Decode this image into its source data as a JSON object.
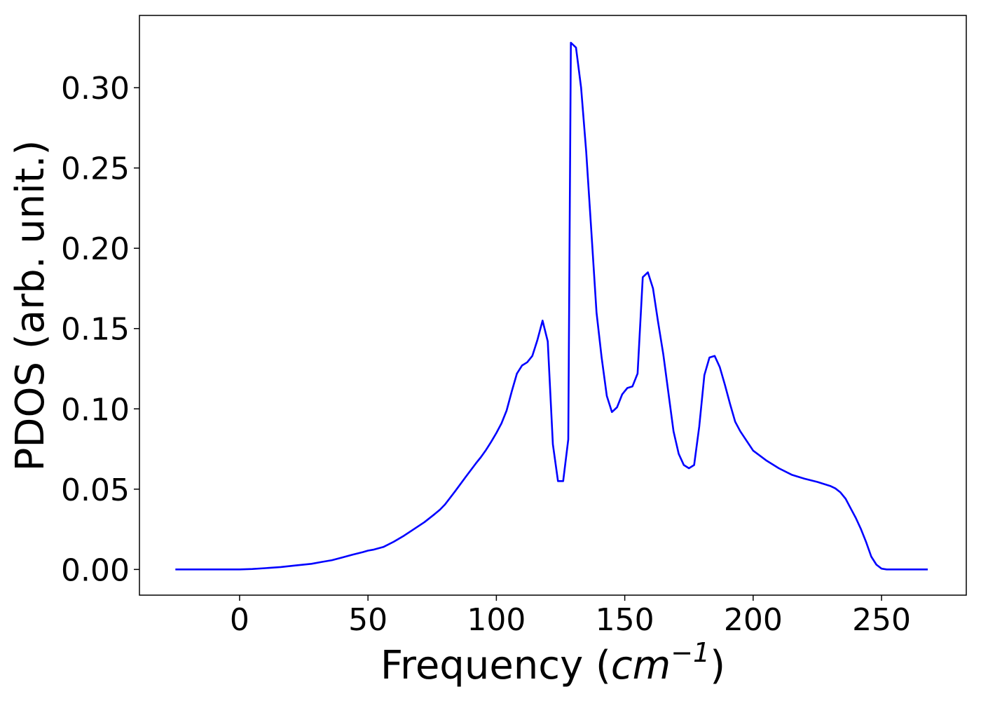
{
  "chart_data": {
    "type": "line",
    "title": "",
    "xlabel": "Frequency",
    "xlabel_unit": "cm",
    "xlabel_unit_exponent": "−1",
    "ylabel": "PDOS (arb. unit.)",
    "xlim": [
      -39,
      283
    ],
    "ylim": [
      -0.016,
      0.345
    ],
    "xticks": [
      0,
      50,
      100,
      150,
      200,
      250
    ],
    "xtick_labels": [
      "0",
      "50",
      "100",
      "150",
      "200",
      "250"
    ],
    "yticks": [
      0.0,
      0.05,
      0.1,
      0.15,
      0.2,
      0.25,
      0.3
    ],
    "ytick_labels": [
      "0.00",
      "0.05",
      "0.10",
      "0.15",
      "0.20",
      "0.25",
      "0.30"
    ],
    "grid": false,
    "legend": "none",
    "series": [
      {
        "color": "#0000ff",
        "x": [
          -25,
          -15,
          -5,
          0,
          5,
          10,
          16,
          22,
          28,
          32,
          36,
          40,
          44,
          48,
          50,
          52,
          56,
          60,
          64,
          68,
          72,
          76,
          78,
          80,
          84,
          88,
          92,
          94,
          96,
          98,
          100,
          102,
          104,
          106,
          108,
          110,
          112,
          114,
          116,
          118,
          120,
          122,
          124,
          126,
          128,
          129,
          131,
          133,
          135,
          137,
          139,
          141,
          143,
          145,
          147,
          149,
          151,
          153,
          155,
          157,
          159,
          161,
          163,
          165,
          167,
          169,
          171,
          173,
          175,
          177,
          179,
          181,
          183,
          185,
          187,
          189,
          191,
          193,
          195,
          200,
          205,
          210,
          215,
          220,
          225,
          230,
          232,
          234,
          236,
          238,
          240,
          242,
          244,
          246,
          248,
          250,
          252,
          256,
          262,
          268
        ],
        "y": [
          0.0,
          0.0,
          0.0,
          0.0,
          0.0003,
          0.0008,
          0.0015,
          0.0025,
          0.0035,
          0.0047,
          0.0058,
          0.0075,
          0.0092,
          0.0108,
          0.0117,
          0.0123,
          0.014,
          0.0172,
          0.021,
          0.0252,
          0.0295,
          0.0345,
          0.0372,
          0.0405,
          0.0488,
          0.0575,
          0.066,
          0.07,
          0.0745,
          0.0795,
          0.085,
          0.091,
          0.099,
          0.111,
          0.122,
          0.127,
          0.129,
          0.133,
          0.143,
          0.155,
          0.142,
          0.078,
          0.055,
          0.055,
          0.081,
          0.328,
          0.325,
          0.3,
          0.26,
          0.21,
          0.16,
          0.132,
          0.108,
          0.098,
          0.101,
          0.109,
          0.113,
          0.114,
          0.122,
          0.182,
          0.185,
          0.175,
          0.154,
          0.134,
          0.11,
          0.086,
          0.072,
          0.065,
          0.063,
          0.065,
          0.089,
          0.121,
          0.132,
          0.133,
          0.126,
          0.115,
          0.103,
          0.092,
          0.086,
          0.074,
          0.068,
          0.063,
          0.059,
          0.0565,
          0.0545,
          0.052,
          0.0505,
          0.048,
          0.044,
          0.038,
          0.032,
          0.025,
          0.017,
          0.008,
          0.003,
          0.0005,
          0.0,
          0.0,
          0.0,
          0.0
        ]
      }
    ]
  }
}
